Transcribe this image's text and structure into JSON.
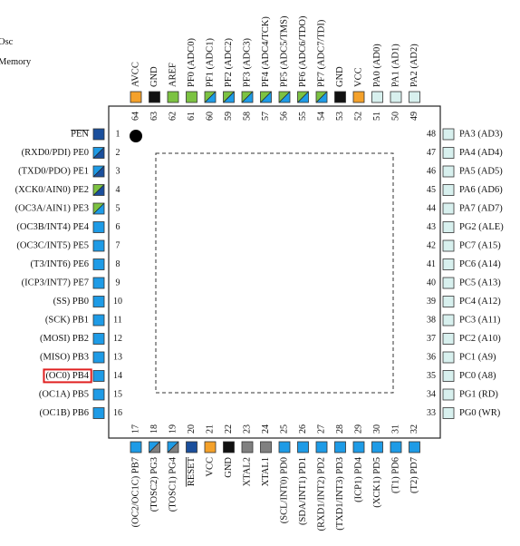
{
  "legend_fragments": [
    "Osc",
    "Memory"
  ],
  "chip": {
    "pin1_dot": true
  },
  "colors": {
    "blue": "#1e9be6",
    "dark_blue": "#1b4f9c",
    "light": "#d8f0ee",
    "green": "#7cc242",
    "black": "#111111",
    "orange": "#f4a12a",
    "gray": "#808080",
    "highlight": "#e02020"
  },
  "highlight_pin": 14,
  "pins_left": [
    {
      "num": "1",
      "label": "PEN",
      "overline": true,
      "style": "dark_blue"
    },
    {
      "num": "2",
      "label": "(RXD0/PDI) PE0",
      "style": "blue_dark"
    },
    {
      "num": "3",
      "label": "(TXD0/PDO) PE1",
      "style": "blue_dark"
    },
    {
      "num": "4",
      "label": "(XCK0/AIN0) PE2",
      "style": "green_dark"
    },
    {
      "num": "5",
      "label": "(OC3A/AIN1) PE3",
      "style": "green_blue"
    },
    {
      "num": "6",
      "label": "(OC3B/INT4) PE4",
      "style": "blue"
    },
    {
      "num": "7",
      "label": "(OC3C/INT5) PE5",
      "style": "blue"
    },
    {
      "num": "8",
      "label": "(T3/INT6) PE6",
      "style": "blue"
    },
    {
      "num": "9",
      "label": "(ICP3/INT7) PE7",
      "style": "blue"
    },
    {
      "num": "10",
      "label": "(SS) PB0",
      "style": "blue"
    },
    {
      "num": "11",
      "label": "(SCK) PB1",
      "style": "blue"
    },
    {
      "num": "12",
      "label": "(MOSI) PB2",
      "style": "blue"
    },
    {
      "num": "13",
      "label": "(MISO) PB3",
      "style": "blue"
    },
    {
      "num": "14",
      "label": "(OC0) PB4",
      "style": "blue"
    },
    {
      "num": "15",
      "label": "(OC1A) PB5",
      "style": "blue"
    },
    {
      "num": "16",
      "label": "(OC1B) PB6",
      "style": "blue"
    }
  ],
  "pins_bottom": [
    {
      "num": "17",
      "label": "(OC2/OC1C) PB7",
      "style": "blue"
    },
    {
      "num": "18",
      "label": "(TOSC2) PG3",
      "style": "blue_gray"
    },
    {
      "num": "19",
      "label": "(TOSC1) PG4",
      "style": "blue_gray"
    },
    {
      "num": "20",
      "label": "RESET",
      "overline": true,
      "style": "dark_blue"
    },
    {
      "num": "21",
      "label": "VCC",
      "style": "orange"
    },
    {
      "num": "22",
      "label": "GND",
      "style": "black"
    },
    {
      "num": "23",
      "label": "XTAL2",
      "style": "gray"
    },
    {
      "num": "24",
      "label": "XTAL1",
      "style": "gray"
    },
    {
      "num": "25",
      "label": "(SCL/INT0) PD0",
      "style": "blue"
    },
    {
      "num": "26",
      "label": "(SDA/INT1) PD1",
      "style": "blue"
    },
    {
      "num": "27",
      "label": "(RXD1/INT2) PD2",
      "style": "blue"
    },
    {
      "num": "28",
      "label": "(TXD1/INT3) PD3",
      "style": "blue"
    },
    {
      "num": "29",
      "label": "(ICP1) PD4",
      "style": "blue"
    },
    {
      "num": "30",
      "label": "(XCK1) PD5",
      "style": "blue"
    },
    {
      "num": "31",
      "label": "(T1) PD6",
      "style": "blue"
    },
    {
      "num": "32",
      "label": "(T2) PD7",
      "style": "blue"
    }
  ],
  "pins_right": [
    {
      "num": "48",
      "label": "PA3 (AD3)",
      "style": "light"
    },
    {
      "num": "47",
      "label": "PA4 (AD4)",
      "style": "light"
    },
    {
      "num": "46",
      "label": "PA5 (AD5)",
      "style": "light"
    },
    {
      "num": "45",
      "label": "PA6 (AD6)",
      "style": "light"
    },
    {
      "num": "44",
      "label": "PA7 (AD7)",
      "style": "light"
    },
    {
      "num": "43",
      "label": "PG2 (ALE)",
      "style": "light"
    },
    {
      "num": "42",
      "label": "PC7 (A15)",
      "style": "light"
    },
    {
      "num": "41",
      "label": "PC6 (A14)",
      "style": "light"
    },
    {
      "num": "40",
      "label": "PC5 (A13)",
      "style": "light"
    },
    {
      "num": "39",
      "label": "PC4 (A12)",
      "style": "light"
    },
    {
      "num": "38",
      "label": "PC3 (A11)",
      "style": "light"
    },
    {
      "num": "37",
      "label": "PC2 (A10)",
      "style": "light"
    },
    {
      "num": "36",
      "label": "PC1 (A9)",
      "style": "light"
    },
    {
      "num": "35",
      "label": "PC0 (A8)",
      "style": "light"
    },
    {
      "num": "34",
      "label": "PG1 (RD)",
      "style": "light"
    },
    {
      "num": "33",
      "label": "PG0 (WR)",
      "style": "light"
    }
  ],
  "pins_top": [
    {
      "num": "64",
      "label": "AVCC",
      "style": "orange"
    },
    {
      "num": "63",
      "label": "GND",
      "style": "black"
    },
    {
      "num": "62",
      "label": "AREF",
      "style": "green"
    },
    {
      "num": "61",
      "label": "PF0 (ADC0)",
      "style": "green"
    },
    {
      "num": "60",
      "label": "PF1 (ADC1)",
      "style": "green_blue"
    },
    {
      "num": "59",
      "label": "PF2 (ADC2)",
      "style": "green_blue"
    },
    {
      "num": "58",
      "label": "PF3 (ADC3)",
      "style": "green_blue"
    },
    {
      "num": "57",
      "label": "PF4 (ADC4/TCK)",
      "style": "green_blue"
    },
    {
      "num": "56",
      "label": "PF5 (ADC5/TMS)",
      "style": "green_blue"
    },
    {
      "num": "55",
      "label": "PF6 (ADC6/TDO)",
      "style": "green_blue"
    },
    {
      "num": "54",
      "label": "PF7 (ADC7/TDI)",
      "style": "green_blue"
    },
    {
      "num": "53",
      "label": "GND",
      "style": "black"
    },
    {
      "num": "52",
      "label": "VCC",
      "style": "orange"
    },
    {
      "num": "51",
      "label": "PA0 (AD0)",
      "style": "light"
    },
    {
      "num": "50",
      "label": "PA1 (AD1)",
      "style": "light"
    },
    {
      "num": "49",
      "label": "PA2 (AD2)",
      "style": "light"
    }
  ]
}
